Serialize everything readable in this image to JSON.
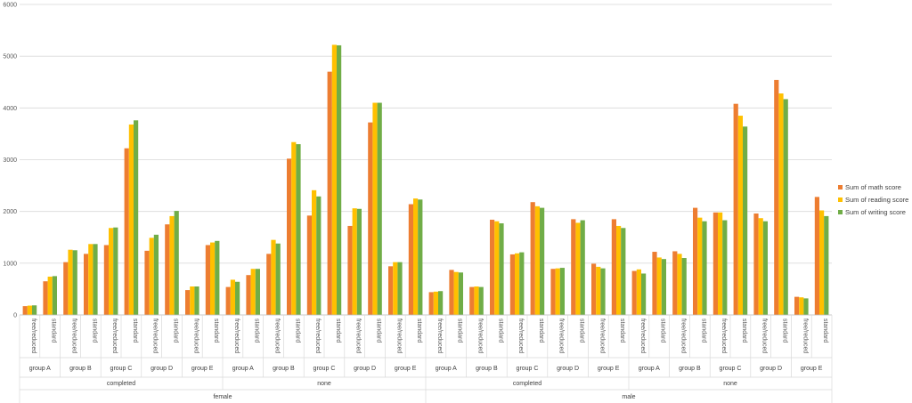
{
  "chart_data": {
    "type": "bar",
    "title": "",
    "xlabel": "",
    "ylabel": "",
    "ylim": [
      0,
      6000
    ],
    "yticks": [
      0,
      1000,
      2000,
      3000,
      4000,
      5000,
      6000
    ],
    "grid": true,
    "legend_position": "right",
    "colors": [
      "#ED7D31",
      "#FFC000",
      "#70AD47"
    ],
    "gender_labels": [
      "female",
      "male"
    ],
    "prep_labels": [
      "completed",
      "none",
      "completed",
      "none"
    ],
    "group_labels": [
      "group A",
      "group B",
      "group C",
      "group D",
      "group E",
      "group A",
      "group B",
      "group C",
      "group D",
      "group E",
      "group A",
      "group B",
      "group C",
      "group D",
      "group E",
      "group A",
      "group B",
      "group C",
      "group D",
      "group E"
    ],
    "categories": [
      "free/reduced",
      "standard",
      "free/reduced",
      "standard",
      "free/reduced",
      "standard",
      "free/reduced",
      "standard",
      "free/reduced",
      "standard",
      "free/reduced",
      "standard",
      "free/reduced",
      "standard",
      "free/reduced",
      "standard",
      "free/reduced",
      "standard",
      "free/reduced",
      "standard",
      "free/reduced",
      "standard",
      "free/reduced",
      "standard",
      "free/reduced",
      "standard",
      "free/reduced",
      "standard",
      "free/reduced",
      "standard",
      "free/reduced",
      "standard",
      "free/reduced",
      "standard",
      "free/reduced",
      "standard",
      "free/reduced",
      "standard",
      "free/reduced",
      "standard"
    ],
    "series": [
      {
        "name": "Sum of math score",
        "values": [
          170,
          650,
          1020,
          1180,
          1350,
          3220,
          1240,
          1750,
          480,
          1350,
          540,
          770,
          1180,
          3020,
          1920,
          4700,
          1720,
          3720,
          940,
          2140,
          440,
          870,
          540,
          1840,
          1170,
          2180,
          890,
          1850,
          990,
          1850,
          850,
          1220,
          1230,
          2070,
          1980,
          4080,
          1960,
          4540,
          350,
          2280
        ]
      },
      {
        "name": "Sum of reading score",
        "values": [
          180,
          740,
          1260,
          1370,
          1680,
          3680,
          1490,
          1910,
          550,
          1400,
          680,
          890,
          1450,
          3340,
          2410,
          5220,
          2060,
          4100,
          1020,
          2250,
          450,
          830,
          550,
          1810,
          1190,
          2100,
          900,
          1780,
          930,
          1720,
          880,
          1110,
          1180,
          1880,
          1980,
          3850,
          1870,
          4280,
          340,
          2020
        ]
      },
      {
        "name": "Sum of writing score",
        "values": [
          185,
          750,
          1250,
          1370,
          1690,
          3760,
          1550,
          2010,
          550,
          1430,
          640,
          890,
          1380,
          3300,
          2290,
          5210,
          2050,
          4100,
          1020,
          2230,
          460,
          820,
          540,
          1770,
          1210,
          2070,
          910,
          1830,
          900,
          1680,
          800,
          1080,
          1100,
          1810,
          1830,
          3640,
          1810,
          4170,
          320,
          1910
        ]
      }
    ]
  }
}
